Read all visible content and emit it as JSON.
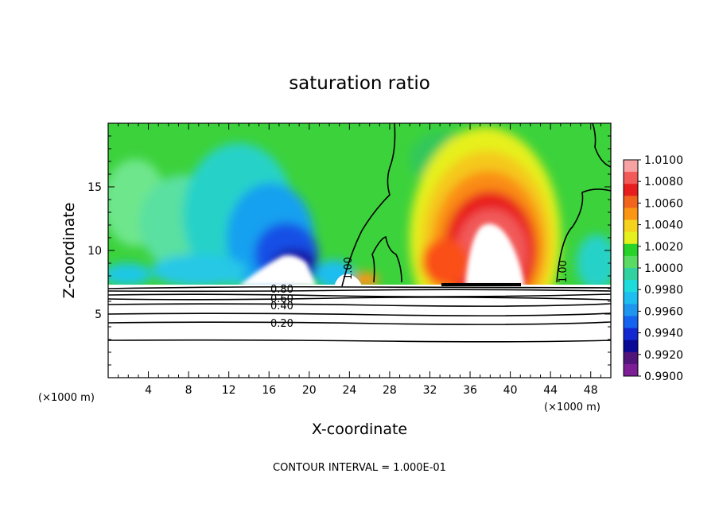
{
  "chart_data": {
    "type": "heatmap",
    "title": "saturation ratio",
    "xlabel": "X-coordinate",
    "ylabel": "Z-coordinate",
    "x_unit_left": "(×1000 m)",
    "x_unit_right": "(×1000 m)",
    "xlim": [
      0,
      50
    ],
    "ylim": [
      0,
      20
    ],
    "x_ticks": [
      4,
      8,
      12,
      16,
      20,
      24,
      28,
      32,
      36,
      40,
      44,
      48
    ],
    "y_ticks": [
      5,
      10,
      15
    ],
    "colorbar": {
      "levels": [
        "1.0100",
        "1.0080",
        "1.0060",
        "1.0040",
        "1.0020",
        "1.0000",
        "0.9980",
        "0.9960",
        "0.9940",
        "0.9920",
        "0.9900"
      ],
      "colors": [
        "#f7a3a3",
        "#f25a5a",
        "#e81e1e",
        "#f0641e",
        "#fa9614",
        "#f5d21e",
        "#e6f01e",
        "#28d228",
        "#5adc64",
        "#32d2a0",
        "#1edcdc",
        "#1ebef0",
        "#1e96f0",
        "#1464f0",
        "#1428d2",
        "#0a0a96",
        "#50147a",
        "#7d1e96"
      ],
      "range": [
        0.99,
        1.01
      ]
    },
    "contour_labels": [
      "0.80",
      "0.60",
      "0.40",
      "0.20",
      "1.00",
      "1.00"
    ],
    "footer": "CONTOUR INTERVAL = 1.000E-01"
  }
}
